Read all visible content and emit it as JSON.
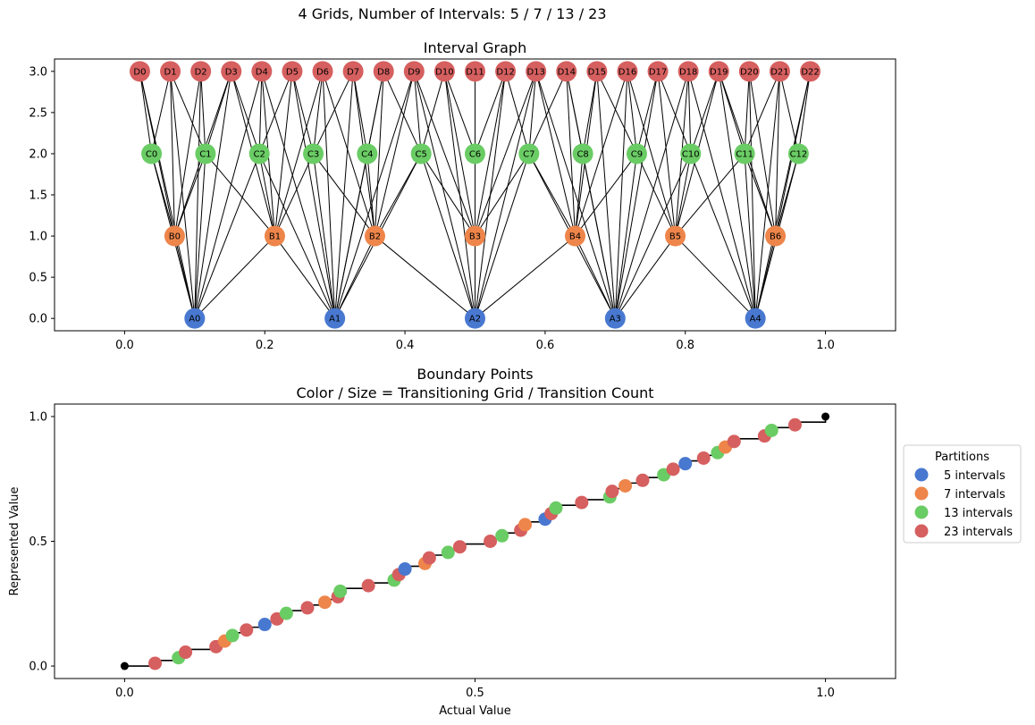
{
  "suptitle": "4 Grids, Number of Intervals: 5 / 7 / 13 / 23",
  "colors": {
    "A": "#4878d0",
    "B": "#ee854a",
    "C": "#6acc64",
    "D": "#d65f5f"
  },
  "chart_data": [
    {
      "type": "graph",
      "title": "Interval Graph",
      "xlim": [
        -0.1,
        1.1
      ],
      "ylim": [
        -0.15,
        3.15
      ],
      "xticks": [
        "0.0",
        "0.2",
        "0.4",
        "0.6",
        "0.8",
        "1.0"
      ],
      "xtick_values": [
        0.0,
        0.2,
        0.4,
        0.6,
        0.8,
        1.0
      ],
      "yticks": [
        "0.0",
        "0.5",
        "1.0",
        "1.5",
        "2.0",
        "2.5",
        "3.0"
      ],
      "ytick_values": [
        0.0,
        0.5,
        1.0,
        1.5,
        2.0,
        2.5,
        3.0
      ],
      "levels": [
        {
          "prefix": "A",
          "y": 0,
          "intervals": 5
        },
        {
          "prefix": "B",
          "y": 1,
          "intervals": 7
        },
        {
          "prefix": "C",
          "y": 2,
          "intervals": 13
        },
        {
          "prefix": "D",
          "y": 3,
          "intervals": 23
        }
      ]
    },
    {
      "type": "step-scatter",
      "title": "Boundary Points\nColor / Size = Transitioning Grid / Transition Count",
      "xlabel": "Actual Value",
      "ylabel": "Represented Value",
      "xlim": [
        -0.1,
        1.1
      ],
      "ylim": [
        -0.05,
        1.05
      ],
      "xticks": [
        "0.0",
        "0.5",
        "1.0"
      ],
      "xtick_values": [
        0.0,
        0.5,
        1.0
      ],
      "yticks": [
        "0.0",
        "0.5",
        "1.0"
      ],
      "ytick_values": [
        0.0,
        0.5,
        1.0
      ],
      "legend": {
        "title": "Partitions",
        "placement": "center-right-outside",
        "entries": [
          "5 intervals",
          "7 intervals",
          "13 intervals",
          "23 intervals"
        ]
      },
      "series": [
        {
          "name": "5 intervals",
          "intervals": 5
        },
        {
          "name": "7 intervals",
          "intervals": 7
        },
        {
          "name": "13 intervals",
          "intervals": 13
        },
        {
          "name": "23 intervals",
          "intervals": 23
        }
      ]
    }
  ]
}
